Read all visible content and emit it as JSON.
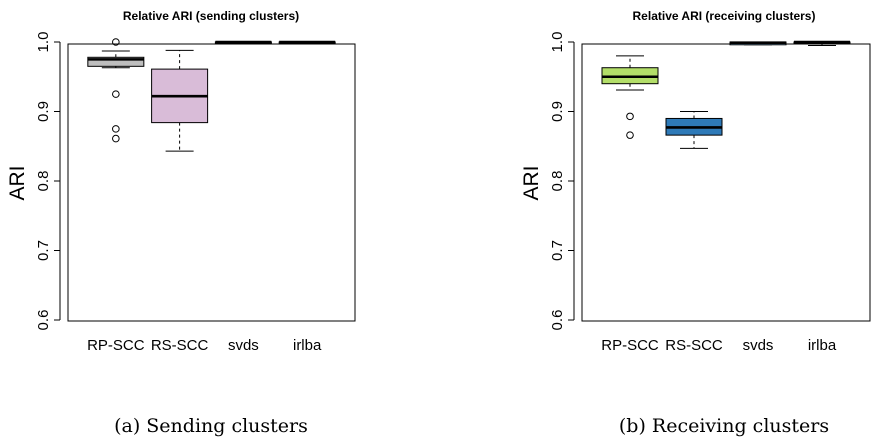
{
  "chart_data": [
    {
      "type": "boxplot",
      "title": "Relative ARI (sending clusters)",
      "ylabel": "ARI",
      "ylim": [
        0.6,
        1.0
      ],
      "yticks": [
        "0.6",
        "0.7",
        "0.8",
        "0.9",
        "1.0"
      ],
      "categories": [
        "RP-SCC",
        "RS-SCC",
        "svds",
        "irlba"
      ],
      "boxes": [
        {
          "label": "RP-SCC",
          "whisker_low": 0.963,
          "q1": 0.965,
          "median": 0.975,
          "q3": 0.978,
          "whisker_high": 0.987,
          "outliers": [
            1.0,
            0.925,
            0.875,
            0.861
          ],
          "color": "#bebebe"
        },
        {
          "label": "RS-SCC",
          "whisker_low": 0.843,
          "q1": 0.884,
          "median": 0.922,
          "q3": 0.961,
          "whisker_high": 0.988,
          "outliers": [],
          "color": "#d9bcd8"
        },
        {
          "label": "svds",
          "whisker_low": 1.0,
          "q1": 1.0,
          "median": 1.0,
          "q3": 1.0,
          "whisker_high": 1.0,
          "outliers": [],
          "color": "#ffffff"
        },
        {
          "label": "irlba",
          "whisker_low": 1.0,
          "q1": 1.0,
          "median": 1.0,
          "q3": 1.0,
          "whisker_high": 1.0,
          "outliers": [],
          "color": "#ffffff"
        }
      ],
      "caption": "(a) Sending clusters"
    },
    {
      "type": "boxplot",
      "title": "Relative ARI (receiving clusters)",
      "ylabel": "ARI",
      "ylim": [
        0.6,
        1.0
      ],
      "yticks": [
        "0.6",
        "0.7",
        "0.8",
        "0.9",
        "1.0"
      ],
      "categories": [
        "RP-SCC",
        "RS-SCC",
        "svds",
        "irlba"
      ],
      "boxes": [
        {
          "label": "RP-SCC",
          "whisker_low": 0.931,
          "q1": 0.94,
          "median": 0.95,
          "q3": 0.963,
          "whisker_high": 0.98,
          "outliers": [
            0.893,
            0.866
          ],
          "color": "#b3de69"
        },
        {
          "label": "RS-SCC",
          "whisker_low": 0.847,
          "q1": 0.866,
          "median": 0.877,
          "q3": 0.89,
          "whisker_high": 0.9,
          "outliers": [],
          "color": "#2e7ab8"
        },
        {
          "label": "svds",
          "whisker_low": 0.996,
          "q1": 0.996,
          "median": 0.999,
          "q3": 1.0,
          "whisker_high": 1.0,
          "outliers": [],
          "color": "#8ec3e3"
        },
        {
          "label": "irlba",
          "whisker_low": 0.995,
          "q1": 0.998,
          "median": 1.0,
          "q3": 1.0,
          "whisker_high": 1.0,
          "outliers": [],
          "color": "#ffffff"
        }
      ],
      "caption": "(b) Receiving clusters"
    }
  ]
}
